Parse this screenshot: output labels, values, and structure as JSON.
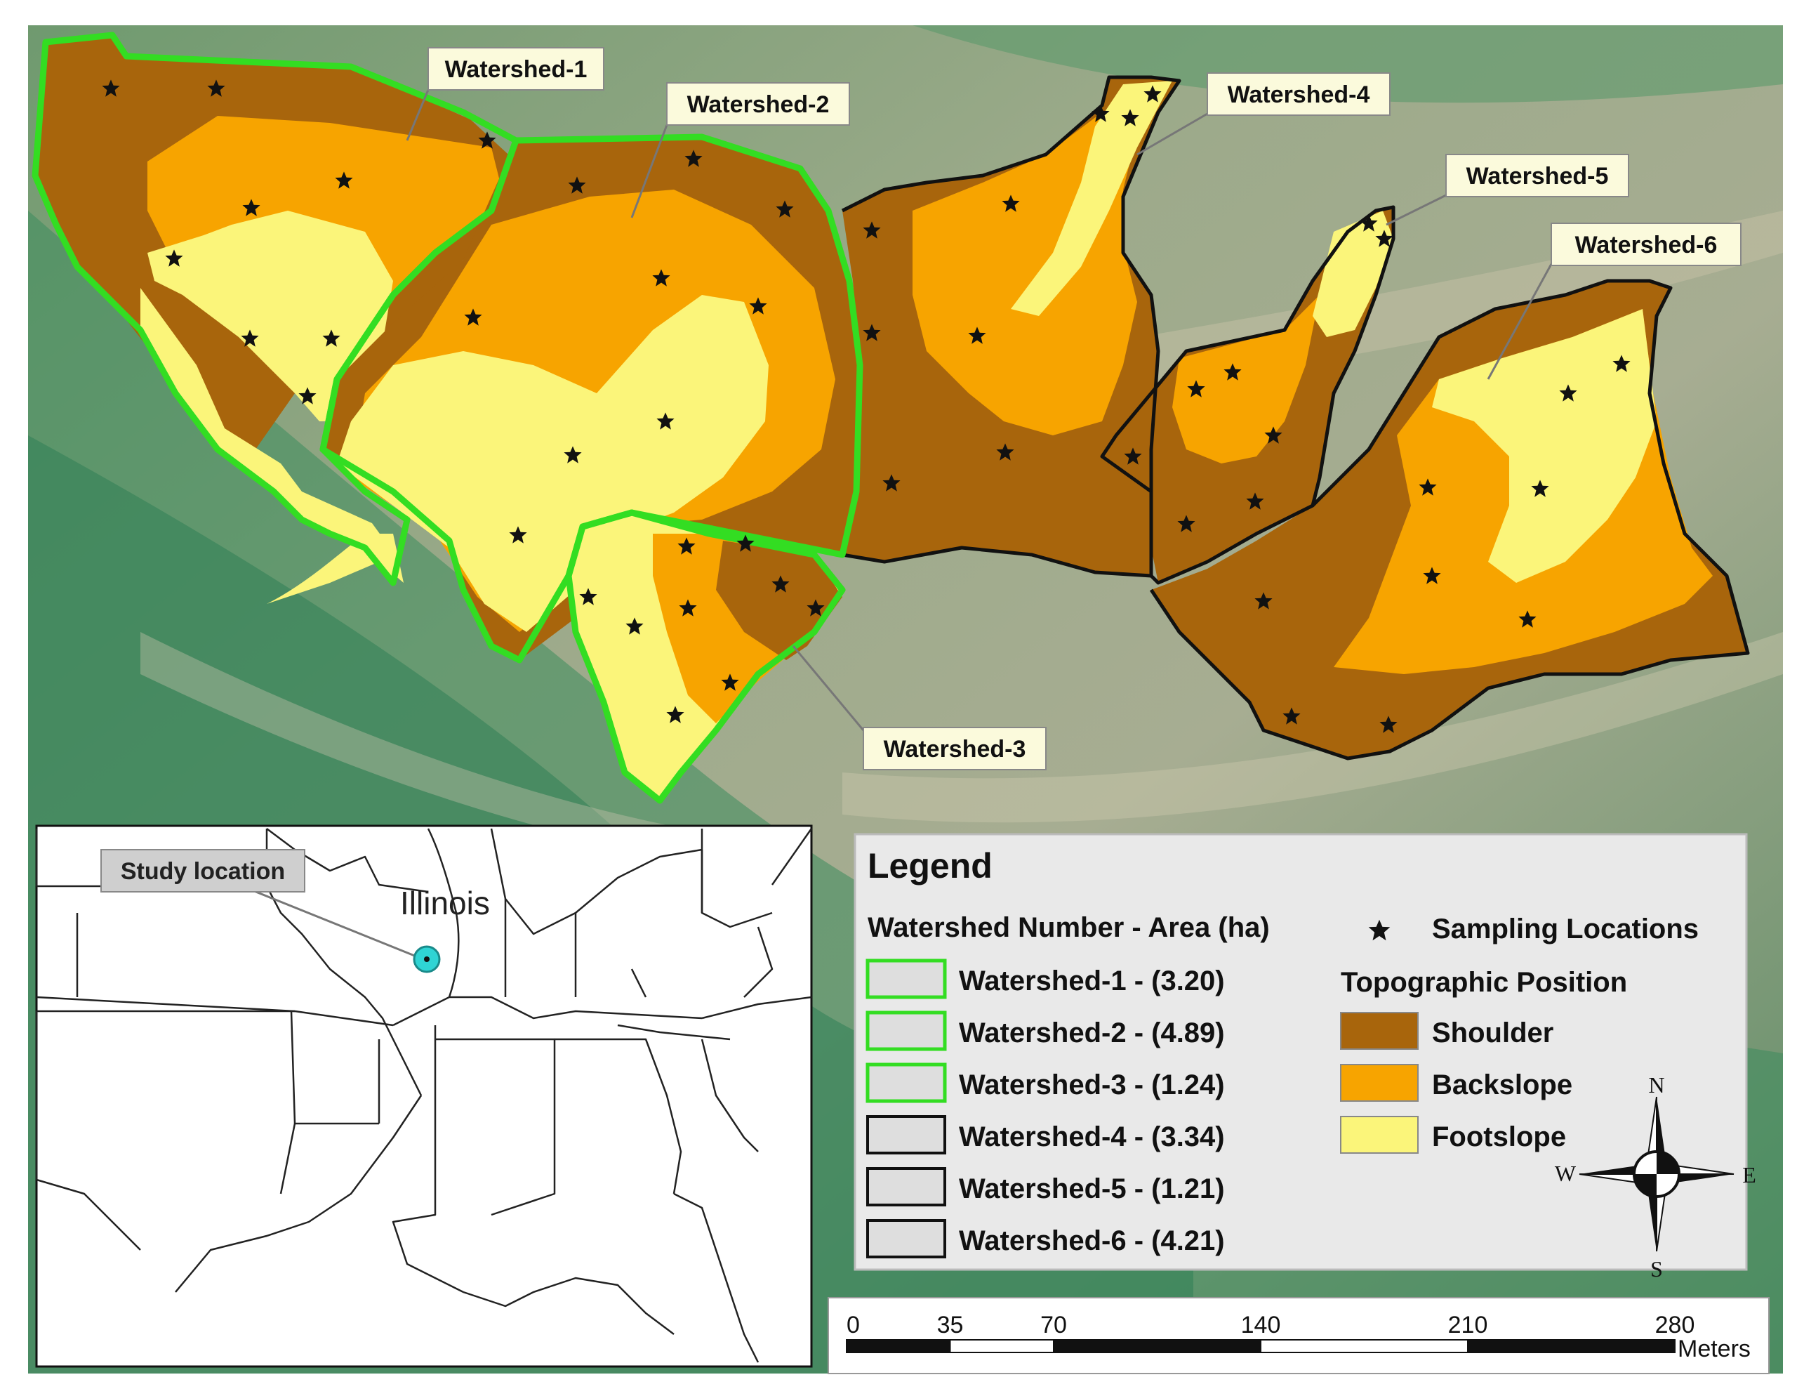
{
  "callouts": [
    "Watershed-1",
    "Watershed-2",
    "Watershed-3",
    "Watershed-4",
    "Watershed-5",
    "Watershed-6"
  ],
  "legend": {
    "title": "Legend",
    "watershed_header": "Watershed Number - Area (ha)",
    "watersheds": [
      {
        "label": "Watershed-1 - (3.20)",
        "border_color": "#33dd22"
      },
      {
        "label": "Watershed-2 - (4.89)",
        "border_color": "#33dd22"
      },
      {
        "label": "Watershed-3 - (1.24)",
        "border_color": "#33dd22"
      },
      {
        "label": "Watershed-4 - (3.34)",
        "border_color": "#111111"
      },
      {
        "label": "Watershed-5 - (1.21)",
        "border_color": "#111111"
      },
      {
        "label": "Watershed-6 - (4.21)",
        "border_color": "#111111"
      }
    ],
    "sampling_label": "Sampling Locations",
    "sampling_icon": "star-icon",
    "topo_header": "Topographic Position",
    "topo_classes": [
      {
        "label": "Shoulder",
        "color": "#a8650c"
      },
      {
        "label": "Backslope",
        "color": "#f7a400"
      },
      {
        "label": "Footslope",
        "color": "#fbf57a"
      }
    ]
  },
  "compass": {
    "n": "N",
    "s": "S",
    "e": "E",
    "w": "W"
  },
  "scalebar": {
    "ticks": [
      "0",
      "35",
      "70",
      "140",
      "210",
      "280"
    ],
    "tick_values": [
      0,
      35,
      70,
      140,
      210,
      280
    ],
    "unit": "Meters"
  },
  "inset": {
    "state_label": "Illinois",
    "callout": "Study location"
  },
  "colors": {
    "green_boundary": "#33dd22",
    "shoulder": "#a8650c",
    "backslope": "#f7a400",
    "footslope": "#fbf57a",
    "marker": "#2fd4d4"
  }
}
